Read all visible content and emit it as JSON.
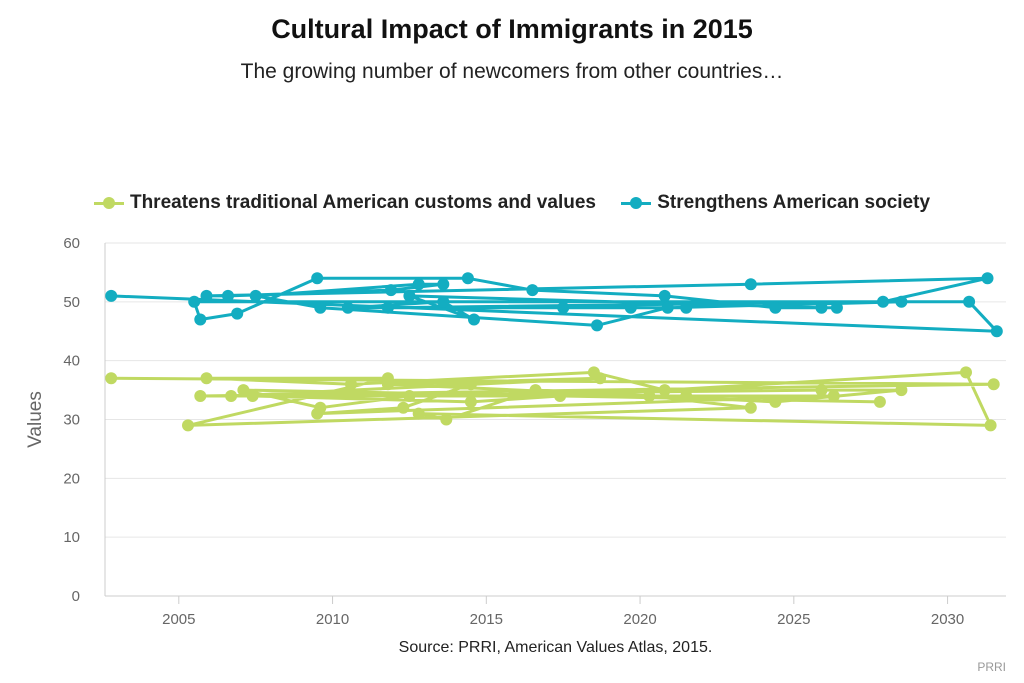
{
  "chart_data": {
    "type": "line",
    "title": "Cultural Impact of Immigrants in 2015",
    "subtitle": "The growing number of newcomers from other countries…",
    "ylabel": "Values",
    "xlabel": "",
    "xlim": [
      2002.6,
      2031.9
    ],
    "ylim": [
      0,
      60
    ],
    "x_ticks": [
      2005,
      2010,
      2015,
      2020,
      2025,
      2030
    ],
    "y_ticks": [
      0,
      10,
      20,
      30,
      40,
      50,
      60
    ],
    "grid": "horizontal",
    "legend_position": "top",
    "source": "Source: PRRI, American Values Atlas, 2015.",
    "credit": "PRRI",
    "series": [
      {
        "name": "Threatens traditional American customs and values",
        "color": "#c0d962",
        "points": [
          [
            2002.8,
            37
          ],
          [
            2031.5,
            36
          ],
          [
            2005.7,
            34
          ],
          [
            2026.3,
            34
          ],
          [
            2009.5,
            31
          ],
          [
            2012.3,
            32
          ],
          [
            2014.5,
            36
          ],
          [
            2006.7,
            34
          ],
          [
            2018.7,
            37
          ],
          [
            2011.8,
            36
          ],
          [
            2020.3,
            34
          ],
          [
            2023.6,
            32
          ],
          [
            2005.3,
            29
          ],
          [
            2011.8,
            37
          ],
          [
            2005.9,
            37
          ],
          [
            2010.6,
            36
          ],
          [
            2018.5,
            38
          ],
          [
            2020.8,
            35
          ],
          [
            2030.6,
            38
          ],
          [
            2031.4,
            29
          ],
          [
            2012.8,
            31
          ],
          [
            2013.7,
            30
          ],
          [
            2016.6,
            35
          ],
          [
            2024.4,
            33
          ],
          [
            2028.5,
            35
          ],
          [
            2025.9,
            35
          ],
          [
            2007.4,
            34
          ],
          [
            2014.5,
            33
          ],
          [
            2017.4,
            34
          ],
          [
            2021.5,
            34
          ],
          [
            2012.5,
            34
          ],
          [
            2009.6,
            32
          ],
          [
            2007.1,
            35
          ],
          [
            2027.8,
            33
          ]
        ]
      },
      {
        "name": "Strengthens American society",
        "color": "#13adc1",
        "points": [
          [
            2002.8,
            51
          ],
          [
            2031.6,
            45
          ],
          [
            2030.7,
            50
          ],
          [
            2005.5,
            50
          ],
          [
            2005.7,
            47
          ],
          [
            2006.9,
            48
          ],
          [
            2009.5,
            54
          ],
          [
            2014.4,
            54
          ],
          [
            2016.5,
            52
          ],
          [
            2020.8,
            51
          ],
          [
            2024.4,
            49
          ],
          [
            2026.4,
            49
          ],
          [
            2025.9,
            49
          ],
          [
            2012.5,
            51
          ],
          [
            2014.6,
            47
          ],
          [
            2013.6,
            50
          ],
          [
            2010.5,
            49
          ],
          [
            2021.5,
            49
          ],
          [
            2017.5,
            49
          ],
          [
            2019.7,
            49
          ],
          [
            2011.8,
            49
          ],
          [
            2027.9,
            50
          ],
          [
            2031.3,
            54
          ],
          [
            2023.6,
            53
          ],
          [
            2005.9,
            51
          ],
          [
            2006.6,
            51
          ],
          [
            2011.9,
            52
          ],
          [
            2013.6,
            53
          ],
          [
            2012.8,
            53
          ],
          [
            2007.5,
            51
          ],
          [
            2009.6,
            49
          ],
          [
            2018.6,
            46
          ],
          [
            2020.9,
            49
          ],
          [
            2028.5,
            50
          ]
        ]
      }
    ]
  }
}
